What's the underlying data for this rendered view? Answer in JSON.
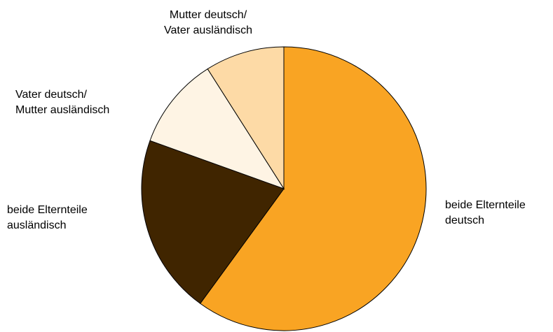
{
  "chart_data": {
    "type": "pie",
    "start_angle_deg": 0,
    "direction": "clockwise",
    "slices": [
      {
        "label": [
          "beide Elternteile",
          "deutsch"
        ],
        "value": 60,
        "color": "#F9A423"
      },
      {
        "label": [
          "beide Elternteile",
          "ausländisch"
        ],
        "value": 20.5,
        "color": "#402500"
      },
      {
        "label": [
          "Vater deutsch/",
          "Mutter ausländisch"
        ],
        "value": 10.5,
        "color": "#FEF4E4"
      },
      {
        "label": [
          "Mutter deutsch/",
          "Vater ausländisch"
        ],
        "value": 9,
        "color": "#FDDAA6"
      }
    ],
    "legend": "none",
    "edge_color": "#000000"
  }
}
